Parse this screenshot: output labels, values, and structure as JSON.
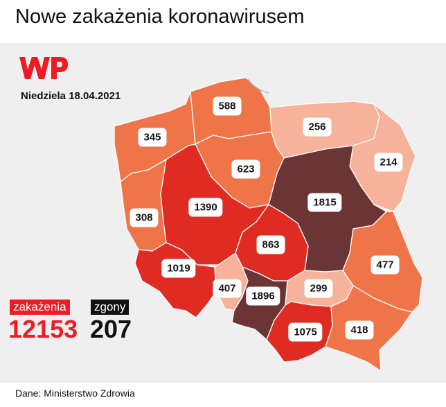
{
  "title": "Nowe zakażenia koronawirusem",
  "date": "Niedziela 18.04.2021",
  "logo": "WP",
  "source": "Dane: Ministerstwo Zdrowia",
  "colors": {
    "level_darkest": "#6b3536",
    "level_high": "#e02b23",
    "level_mid": "#ef7549",
    "level_low": "#f6b29b",
    "brand": "#ed1c24"
  },
  "totals": {
    "infections_label": "zakażenia",
    "infections_value": "12153",
    "deaths_label": "zgony",
    "deaths_value": "207"
  },
  "regions": [
    {
      "id": "zachodniopomorskie",
      "value": "345"
    },
    {
      "id": "pomorskie",
      "value": "588"
    },
    {
      "id": "warminsko-mazurskie",
      "value": "256"
    },
    {
      "id": "podlaskie",
      "value": "214"
    },
    {
      "id": "kujawsko-pomorskie",
      "value": "623"
    },
    {
      "id": "lubuskie",
      "value": "308"
    },
    {
      "id": "wielkopolskie",
      "value": "1390"
    },
    {
      "id": "mazowieckie",
      "value": "1815"
    },
    {
      "id": "lodzkie",
      "value": "863"
    },
    {
      "id": "dolnoslaskie",
      "value": "1019"
    },
    {
      "id": "opolskie",
      "value": "407"
    },
    {
      "id": "slaskie",
      "value": "1896"
    },
    {
      "id": "swietokrzyskie",
      "value": "299"
    },
    {
      "id": "lubelskie",
      "value": "477"
    },
    {
      "id": "malopolskie",
      "value": "1075"
    },
    {
      "id": "podkarpackie",
      "value": "418"
    }
  ]
}
